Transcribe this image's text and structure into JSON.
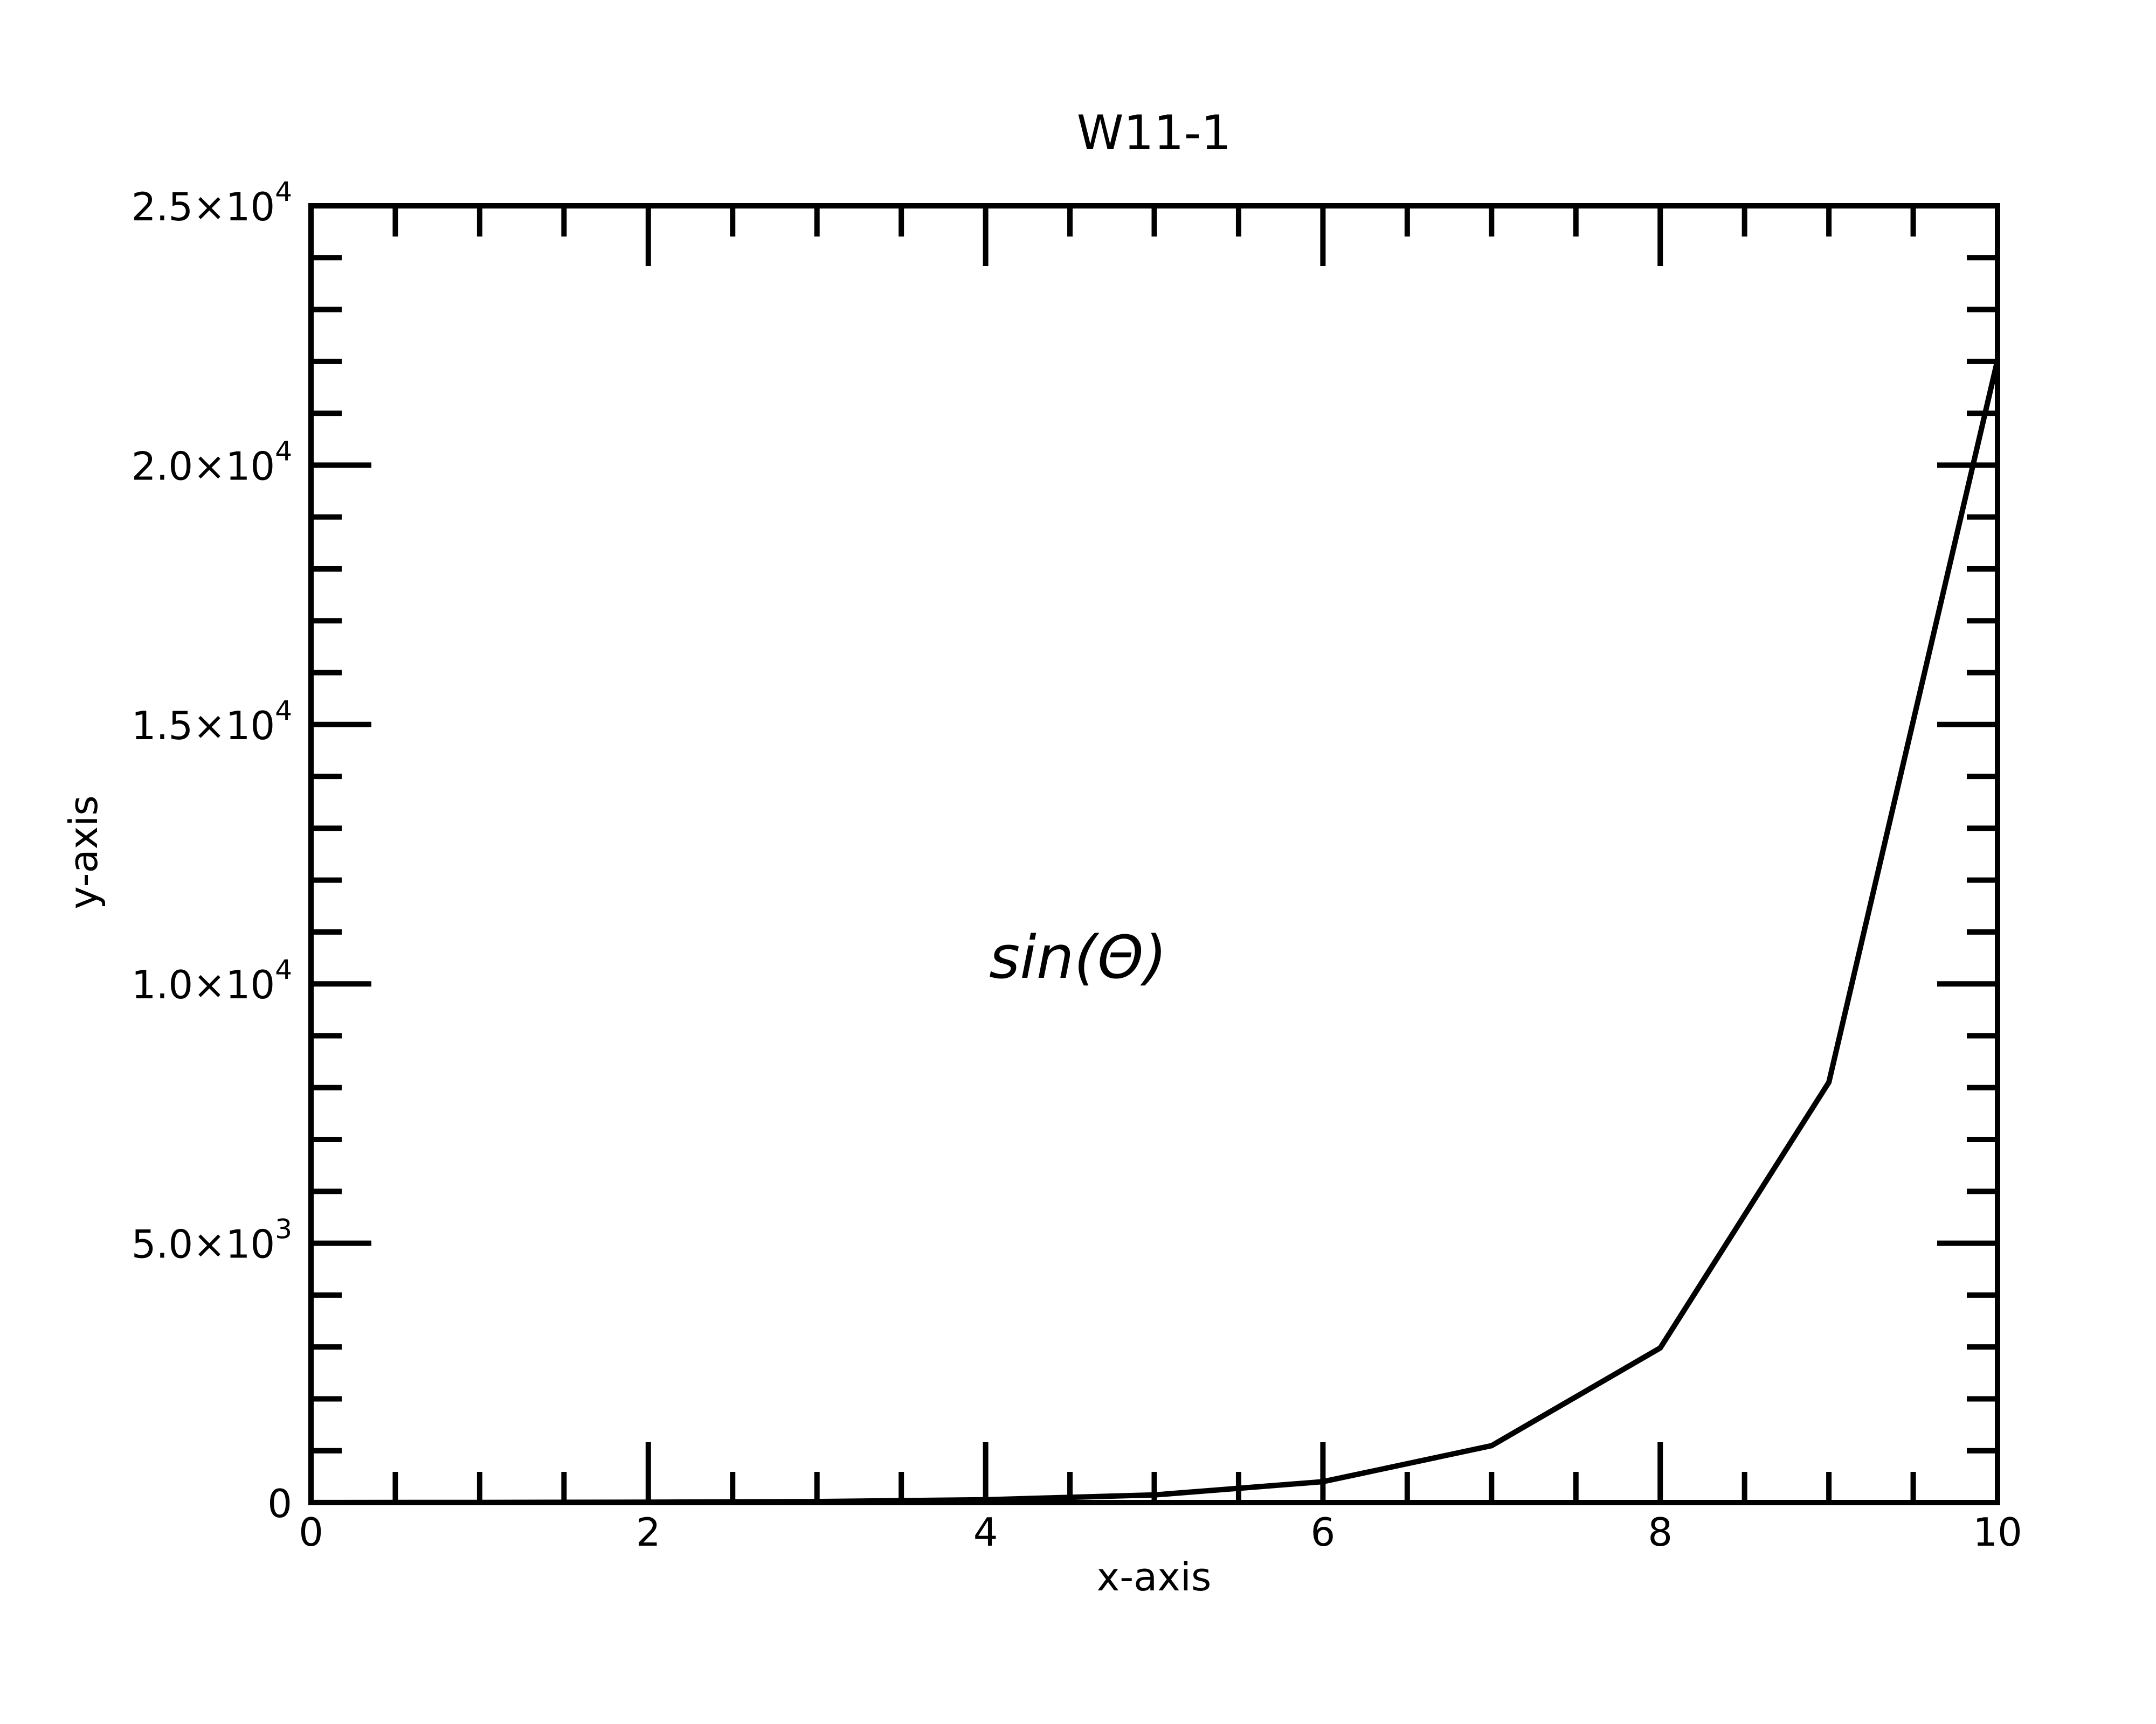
{
  "chart_data": {
    "type": "line",
    "title": "W11-1",
    "xlabel": "x-axis",
    "ylabel": "y-axis",
    "annotation": "sin(Θ)",
    "xlim": [
      0,
      10
    ],
    "ylim": [
      0,
      25000
    ],
    "x_ticks": [
      0,
      2,
      4,
      6,
      8,
      10
    ],
    "x_tick_labels": [
      "0",
      "2",
      "4",
      "6",
      "8",
      "10"
    ],
    "y_ticks": [
      0,
      5000,
      10000,
      15000,
      20000,
      25000
    ],
    "y_tick_labels": [
      {
        "mantissa": "0",
        "exponent": ""
      },
      {
        "mantissa": "5.0×10",
        "exponent": "3"
      },
      {
        "mantissa": "1.0×10",
        "exponent": "4"
      },
      {
        "mantissa": "1.5×10",
        "exponent": "4"
      },
      {
        "mantissa": "2.0×10",
        "exponent": "4"
      },
      {
        "mantissa": "2.5×10",
        "exponent": "4"
      }
    ],
    "x_minor_step": 0.5,
    "y_minor_step": 1000,
    "grid": false,
    "legend": "none",
    "line_color": "#000000",
    "series": [
      {
        "x": [
          0,
          1,
          2,
          3,
          4,
          5,
          6,
          7,
          8,
          9,
          10
        ],
        "y": [
          1,
          3,
          7,
          20,
          55,
          148,
          403,
          1097,
          2981,
          8103,
          22026
        ]
      }
    ]
  }
}
